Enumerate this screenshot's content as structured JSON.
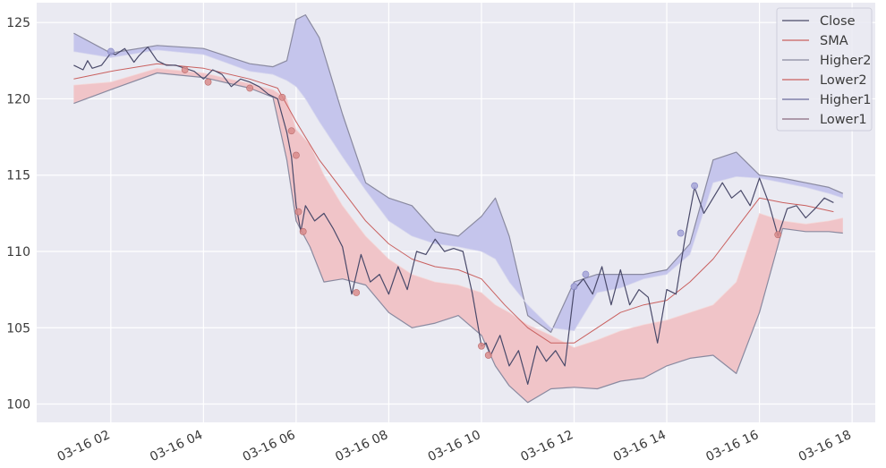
{
  "colors": {
    "background": "#EAEAF2",
    "grid": "#FFFFFF",
    "close": "#4a4a6a",
    "sma": "#c9605f",
    "band1": "#ffffff",
    "upper_fill": "#c5c5ec",
    "lower_fill": "#f0c4c8",
    "marker_low": "#d98c8c",
    "marker_high": "#a4a4d8"
  },
  "chart_data": {
    "type": "line",
    "title": "",
    "xlabel": "",
    "ylabel": "",
    "xlim": [
      0.4,
      18.5
    ],
    "ylim": [
      98.8,
      126.3
    ],
    "grid": true,
    "legend_placement": "top-right",
    "x_ticks": [
      {
        "x": 2,
        "label": "03-16 02"
      },
      {
        "x": 4,
        "label": "03-16 04"
      },
      {
        "x": 6,
        "label": "03-16 06"
      },
      {
        "x": 8,
        "label": "03-16 08"
      },
      {
        "x": 10,
        "label": "03-16 10"
      },
      {
        "x": 12,
        "label": "03-16 12"
      },
      {
        "x": 14,
        "label": "03-16 14"
      },
      {
        "x": 16,
        "label": "03-16 16"
      },
      {
        "x": 18,
        "label": "03-16 18"
      }
    ],
    "y_ticks": [
      {
        "y": 100,
        "label": "100"
      },
      {
        "y": 105,
        "label": "105"
      },
      {
        "y": 110,
        "label": "110"
      },
      {
        "y": 115,
        "label": "115"
      },
      {
        "y": 120,
        "label": "120"
      },
      {
        "y": 125,
        "label": "125"
      }
    ],
    "legend": [
      "Close",
      "SMA",
      "Higher2",
      "Lower2",
      "Higher1",
      "Lower1"
    ],
    "series": [
      {
        "name": "Close",
        "x": [
          1.2,
          1.4,
          1.5,
          1.6,
          1.8,
          2.0,
          2.1,
          2.3,
          2.5,
          2.6,
          2.8,
          3.0,
          3.2,
          3.4,
          3.6,
          3.8,
          4.0,
          4.2,
          4.4,
          4.6,
          4.8,
          5.0,
          5.2,
          5.4,
          5.6,
          5.8,
          5.9,
          6.0,
          6.1,
          6.2,
          6.4,
          6.6,
          6.8,
          7.0,
          7.2,
          7.4,
          7.6,
          7.8,
          8.0,
          8.2,
          8.4,
          8.6,
          8.8,
          9.0,
          9.2,
          9.4,
          9.6,
          9.8,
          10.0,
          10.1,
          10.2,
          10.4,
          10.6,
          10.8,
          11.0,
          11.2,
          11.4,
          11.6,
          11.8,
          12.0,
          12.2,
          12.4,
          12.6,
          12.8,
          13.0,
          13.2,
          13.4,
          13.6,
          13.8,
          14.0,
          14.2,
          14.4,
          14.6,
          14.8,
          15.0,
          15.2,
          15.4,
          15.6,
          15.8,
          16.0,
          16.2,
          16.4,
          16.6,
          16.8,
          17.0,
          17.2,
          17.4,
          17.6
        ],
        "values": [
          122.2,
          121.9,
          122.5,
          122.0,
          122.2,
          123.0,
          122.9,
          123.3,
          122.4,
          122.8,
          123.4,
          122.5,
          122.2,
          122.2,
          122.0,
          121.8,
          121.3,
          121.9,
          121.6,
          120.8,
          121.3,
          121.1,
          120.8,
          120.3,
          120.0,
          117.8,
          116.2,
          113.0,
          111.3,
          113.0,
          112.0,
          112.5,
          111.5,
          110.3,
          107.2,
          109.8,
          108.0,
          108.5,
          107.2,
          109.0,
          107.5,
          110.0,
          109.8,
          110.8,
          110.0,
          110.2,
          110.0,
          107.3,
          103.8,
          104.0,
          103.2,
          104.5,
          102.5,
          103.5,
          101.3,
          103.8,
          102.8,
          103.5,
          102.5,
          107.5,
          108.2,
          107.2,
          109.0,
          106.5,
          108.8,
          106.5,
          107.5,
          107.0,
          104.0,
          107.5,
          107.2,
          111.0,
          114.2,
          112.5,
          113.5,
          114.5,
          113.5,
          114.0,
          113.0,
          114.8,
          113.2,
          111.0,
          112.8,
          113.0,
          112.2,
          112.8,
          113.5,
          113.2
        ]
      },
      {
        "name": "SMA",
        "x": [
          1.2,
          2.0,
          3.0,
          4.0,
          5.0,
          5.6,
          6.0,
          6.5,
          7.0,
          7.5,
          8.0,
          8.5,
          9.0,
          9.5,
          10.0,
          10.5,
          11.0,
          11.5,
          12.0,
          12.5,
          13.0,
          13.5,
          14.0,
          14.5,
          15.0,
          15.5,
          16.0,
          16.5,
          17.0,
          17.6
        ],
        "values": [
          121.3,
          121.8,
          122.3,
          122.0,
          121.3,
          120.7,
          118.5,
          116.0,
          114.0,
          112.0,
          110.5,
          109.5,
          109.0,
          108.8,
          108.2,
          106.5,
          105.0,
          104.0,
          104.0,
          105.0,
          106.0,
          106.5,
          106.8,
          108.0,
          109.5,
          111.5,
          113.5,
          113.2,
          113.0,
          112.6
        ]
      },
      {
        "name": "Higher2",
        "x": [
          1.2,
          2.0,
          3.0,
          4.0,
          5.0,
          5.5,
          5.8,
          6.0,
          6.2,
          6.5,
          7.0,
          7.5,
          8.0,
          8.5,
          9.0,
          9.5,
          10.0,
          10.3,
          10.6,
          11.0,
          11.5,
          12.0,
          12.5,
          13.0,
          13.5,
          14.0,
          14.5,
          15.0,
          15.5,
          16.0,
          16.5,
          17.0,
          17.5,
          17.8
        ],
        "values": [
          124.3,
          123.0,
          123.5,
          123.3,
          122.3,
          122.1,
          122.5,
          125.2,
          125.5,
          124.0,
          119.0,
          114.5,
          113.5,
          113.0,
          111.3,
          111.0,
          112.3,
          113.5,
          111.0,
          105.8,
          104.7,
          108.0,
          108.5,
          108.5,
          108.5,
          108.8,
          110.5,
          116.0,
          116.5,
          115.0,
          114.8,
          114.5,
          114.2,
          113.8
        ]
      },
      {
        "name": "Lower2",
        "x": [
          1.2,
          2.0,
          3.0,
          4.0,
          5.0,
          5.5,
          5.8,
          6.0,
          6.3,
          6.6,
          7.0,
          7.5,
          8.0,
          8.5,
          9.0,
          9.5,
          10.0,
          10.3,
          10.6,
          11.0,
          11.5,
          12.0,
          12.5,
          13.0,
          13.5,
          14.0,
          14.5,
          15.0,
          15.5,
          16.0,
          16.5,
          17.0,
          17.5,
          17.8
        ],
        "values": [
          119.7,
          120.6,
          121.7,
          121.4,
          120.7,
          120.1,
          116.0,
          112.0,
          110.3,
          108.0,
          108.2,
          107.8,
          106.0,
          105.0,
          105.3,
          105.8,
          104.5,
          102.5,
          101.2,
          100.1,
          101.0,
          101.1,
          101.0,
          101.5,
          101.7,
          102.5,
          103.0,
          103.2,
          102.0,
          106.0,
          111.5,
          111.3,
          111.3,
          111.2
        ]
      },
      {
        "name": "Higher1",
        "x": [
          1.2,
          2.0,
          3.0,
          4.0,
          5.0,
          5.5,
          5.8,
          6.0,
          6.2,
          6.5,
          7.0,
          7.5,
          8.0,
          8.5,
          9.0,
          9.5,
          10.0,
          10.3,
          10.6,
          11.0,
          11.5,
          12.0,
          12.5,
          13.0,
          13.5,
          14.0,
          14.5,
          15.0,
          15.5,
          16.0,
          16.5,
          17.0,
          17.5,
          17.8
        ],
        "values": [
          123.1,
          122.7,
          123.2,
          122.9,
          121.8,
          121.6,
          121.2,
          120.8,
          120.0,
          118.5,
          116.2,
          114.0,
          112.0,
          111.0,
          110.5,
          110.3,
          110.0,
          109.5,
          108.0,
          106.5,
          105.0,
          104.8,
          107.3,
          107.6,
          108.2,
          108.5,
          109.8,
          114.5,
          114.9,
          114.8,
          114.5,
          114.2,
          113.8,
          113.5
        ]
      },
      {
        "name": "Lower1",
        "x": [
          1.2,
          2.0,
          3.0,
          4.0,
          5.0,
          5.5,
          5.8,
          6.0,
          6.3,
          6.6,
          7.0,
          7.5,
          8.0,
          8.5,
          9.0,
          9.5,
          10.0,
          10.3,
          10.6,
          11.0,
          11.5,
          12.0,
          12.5,
          13.0,
          13.5,
          14.0,
          14.5,
          15.0,
          15.5,
          16.0,
          16.5,
          17.0,
          17.5,
          17.8
        ],
        "values": [
          120.9,
          121.1,
          122.0,
          121.7,
          121.0,
          120.6,
          120.0,
          118.0,
          117.0,
          115.0,
          113.0,
          111.0,
          109.5,
          108.5,
          108.0,
          107.8,
          107.3,
          106.5,
          106.0,
          105.2,
          104.5,
          103.7,
          104.2,
          104.8,
          105.2,
          105.5,
          106.0,
          106.5,
          108.0,
          112.5,
          112.0,
          111.8,
          112.0,
          112.2
        ]
      }
    ],
    "markers_low": [
      {
        "x": 5.7,
        "y": 120.1
      },
      {
        "x": 5.9,
        "y": 117.9
      },
      {
        "x": 6.0,
        "y": 116.3
      },
      {
        "x": 6.05,
        "y": 112.6
      },
      {
        "x": 6.15,
        "y": 111.3
      },
      {
        "x": 4.1,
        "y": 121.1
      },
      {
        "x": 3.6,
        "y": 121.9
      },
      {
        "x": 7.3,
        "y": 107.3
      },
      {
        "x": 10.0,
        "y": 103.8
      },
      {
        "x": 10.15,
        "y": 103.2
      },
      {
        "x": 16.4,
        "y": 111.1
      },
      {
        "x": 5.0,
        "y": 120.7
      }
    ],
    "markers_high": [
      {
        "x": 2.0,
        "y": 123.1
      },
      {
        "x": 12.0,
        "y": 107.7
      },
      {
        "x": 12.25,
        "y": 108.5
      },
      {
        "x": 14.6,
        "y": 114.3
      },
      {
        "x": 14.3,
        "y": 111.2
      }
    ]
  }
}
